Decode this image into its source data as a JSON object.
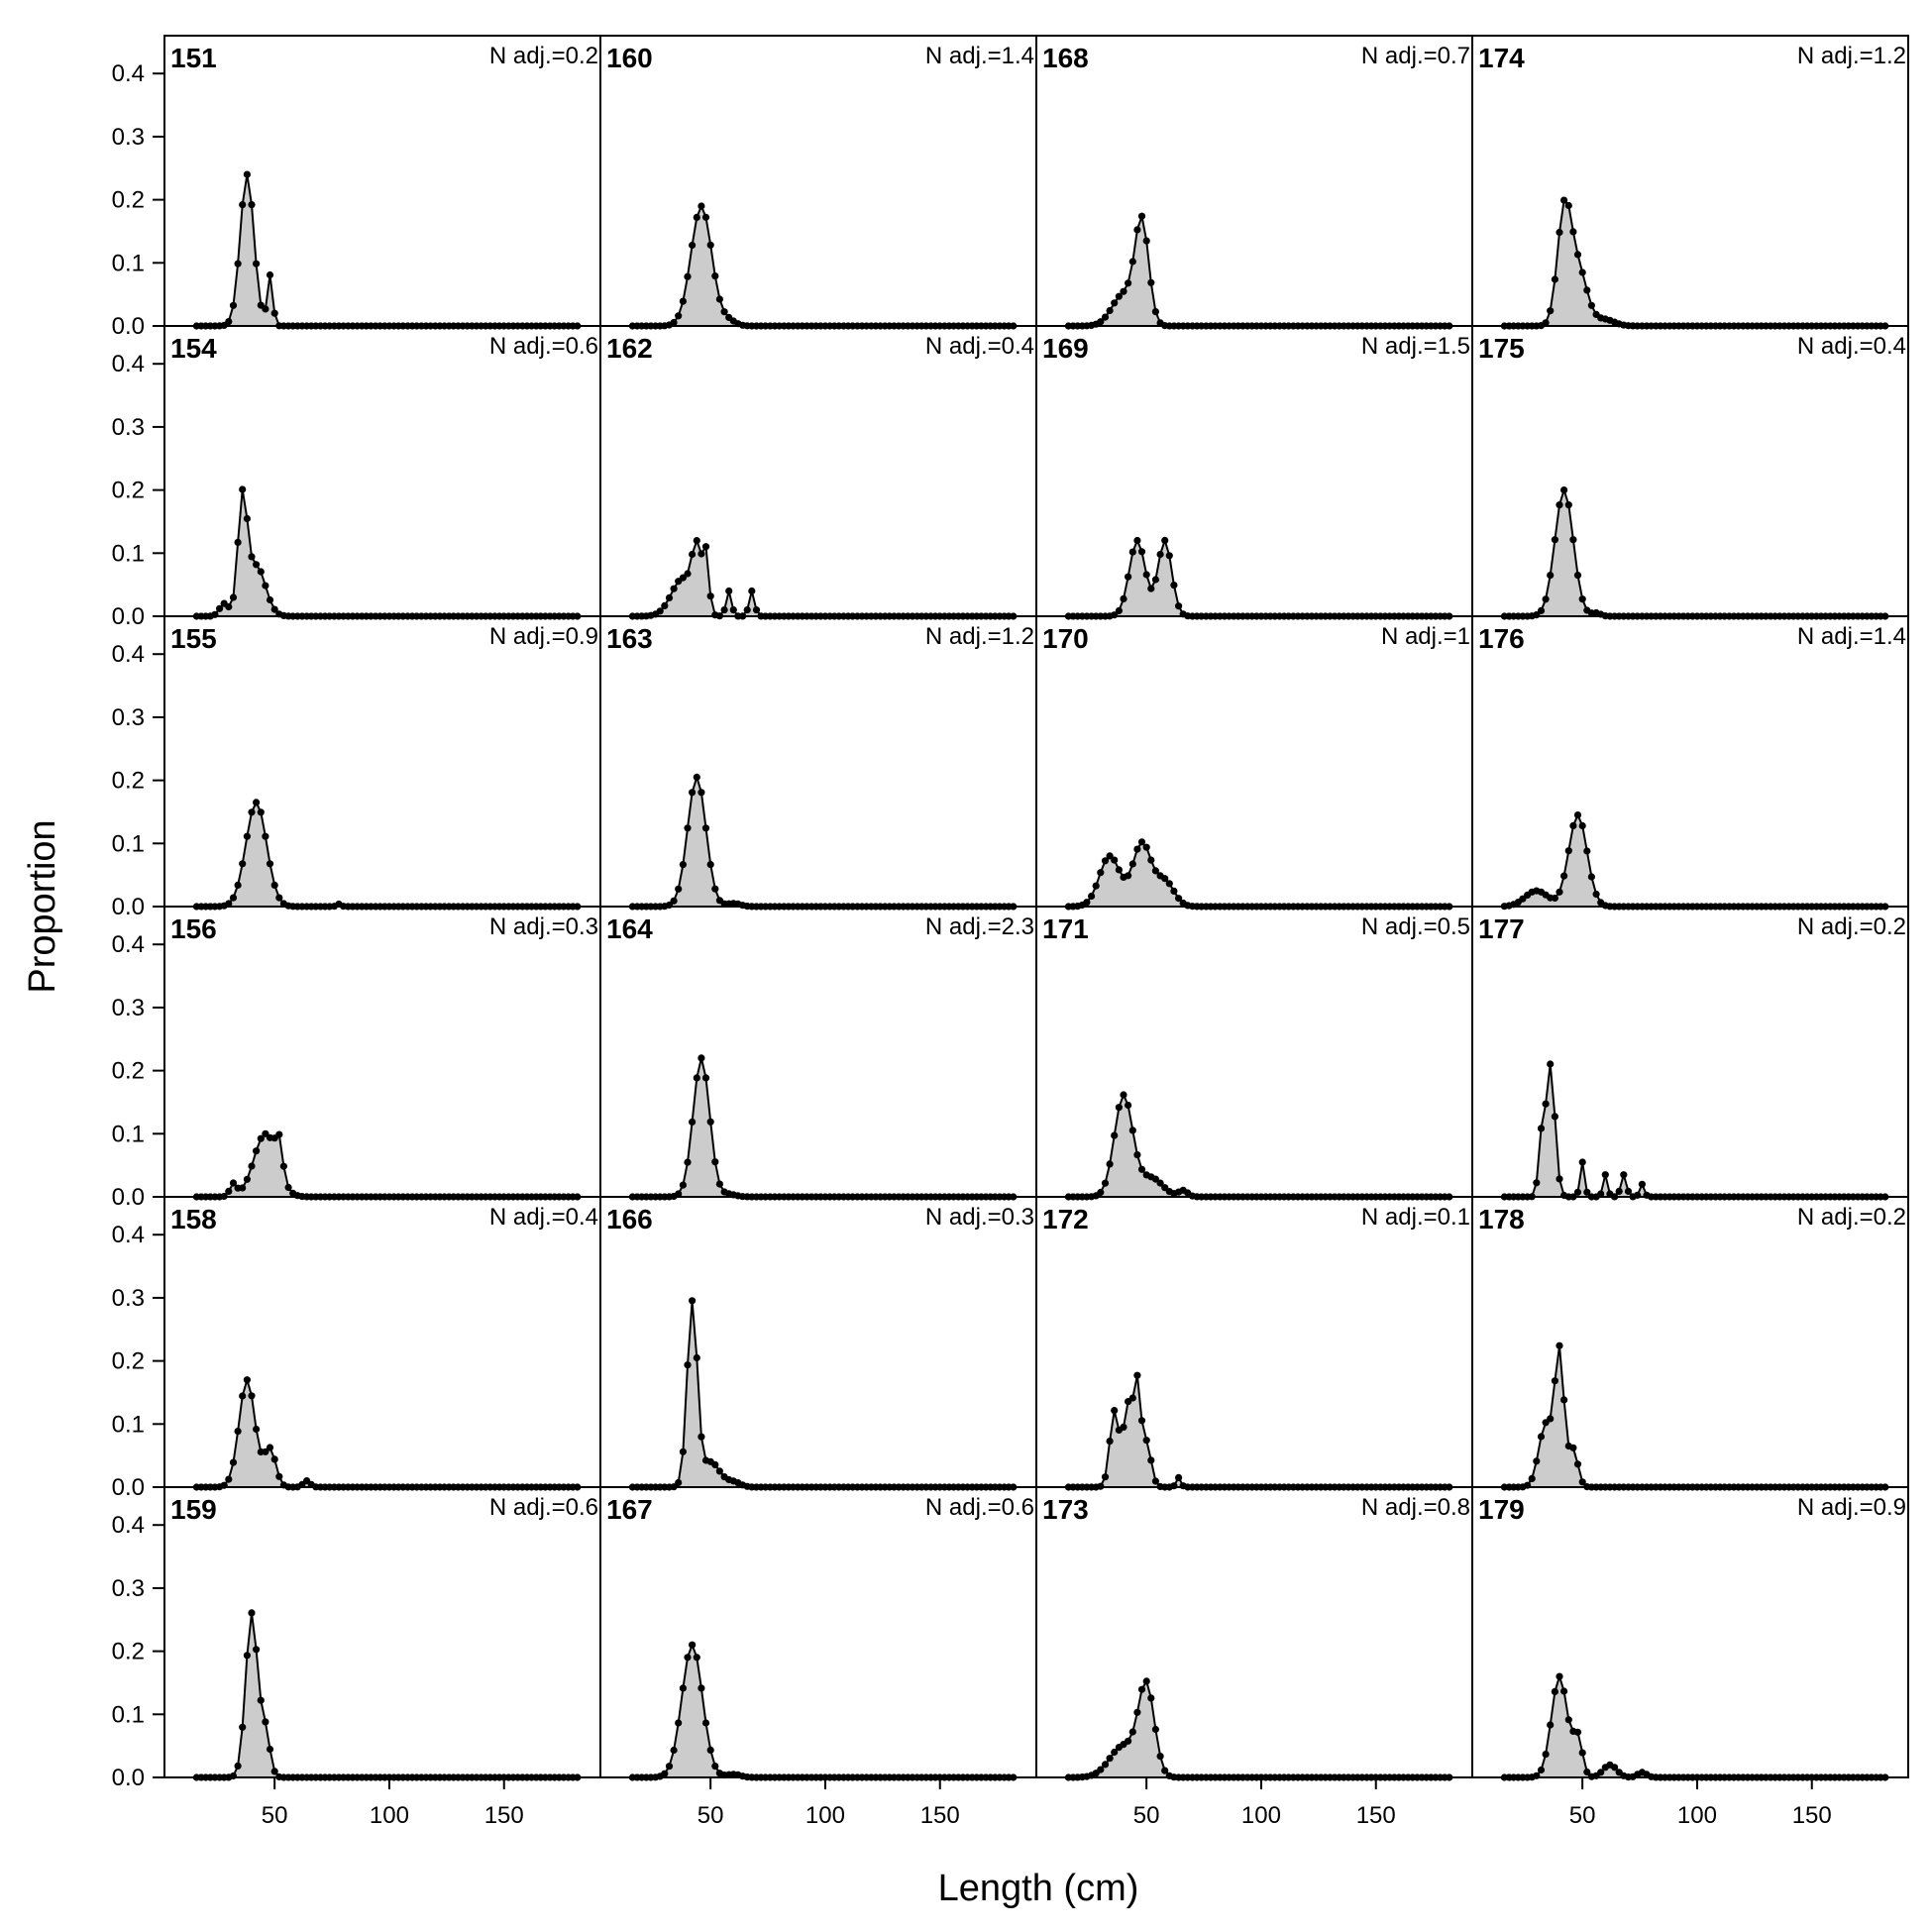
{
  "chart_data": {
    "type": "area",
    "xlabel": "Length (cm)",
    "ylabel": "Proportion",
    "x_range": [
      2,
      192
    ],
    "y_range": [
      0,
      0.46
    ],
    "x_ticks": [
      50,
      100,
      150
    ],
    "y_ticks": [
      "0.0",
      "0.1",
      "0.2",
      "0.3",
      "0.4"
    ],
    "bin_start": 16,
    "bin_end": 182,
    "bin_width": 2,
    "rows": 6,
    "cols": 4,
    "fill_color": "#cccccc",
    "line_color": "#000000",
    "panels": [
      {
        "id": "151",
        "nadj": "N adj.=0.2",
        "peaks": [
          [
            38,
            0.24,
            3
          ],
          [
            48,
            0.08,
            1.2
          ]
        ]
      },
      {
        "id": "154",
        "nadj": "N adj.=0.6",
        "peaks": [
          [
            36,
            0.175,
            2
          ],
          [
            42,
            0.08,
            4
          ],
          [
            28,
            0.02,
            2
          ]
        ]
      },
      {
        "id": "155",
        "nadj": "N adj.=0.9",
        "peaks": [
          [
            42,
            0.165,
            4.5
          ],
          [
            78,
            0.004,
            1
          ]
        ]
      },
      {
        "id": "156",
        "nadj": "N adj.=0.3",
        "peaks": [
          [
            46,
            0.1,
            5
          ],
          [
            52,
            0.05,
            1.5
          ],
          [
            32,
            0.02,
            1.5
          ]
        ]
      },
      {
        "id": "158",
        "nadj": "N adj.=0.4",
        "peaks": [
          [
            38,
            0.17,
            3.5
          ],
          [
            48,
            0.06,
            2.5
          ],
          [
            64,
            0.01,
            1.5
          ]
        ]
      },
      {
        "id": "159",
        "nadj": "N adj.=0.6",
        "peaks": [
          [
            40,
            0.26,
            2.6
          ],
          [
            46,
            0.07,
            2
          ]
        ]
      },
      {
        "id": "160",
        "nadj": "N adj.=1.4",
        "peaks": [
          [
            46,
            0.19,
            4.5
          ],
          [
            58,
            0.008,
            3
          ]
        ]
      },
      {
        "id": "162",
        "nadj": "N adj.=0.4",
        "peaks": [
          [
            38,
            0.06,
            5
          ],
          [
            44,
            0.09,
            2
          ],
          [
            48,
            0.09,
            1.3
          ],
          [
            58,
            0.04,
            1.2
          ],
          [
            68,
            0.04,
            1.2
          ]
        ]
      },
      {
        "id": "163",
        "nadj": "N adj.=1.2",
        "peaks": [
          [
            44,
            0.205,
            4
          ],
          [
            60,
            0.005,
            3
          ]
        ]
      },
      {
        "id": "164",
        "nadj": "N adj.=2.3",
        "peaks": [
          [
            46,
            0.22,
            3.6
          ],
          [
            58,
            0.004,
            3
          ]
        ]
      },
      {
        "id": "166",
        "nadj": "N adj.=0.3",
        "peaks": [
          [
            42,
            0.29,
            2.2
          ],
          [
            50,
            0.04,
            4
          ],
          [
            60,
            0.008,
            3
          ]
        ]
      },
      {
        "id": "167",
        "nadj": "N adj.=0.6",
        "peaks": [
          [
            42,
            0.21,
            4.5
          ],
          [
            60,
            0.005,
            3
          ]
        ]
      },
      {
        "id": "168",
        "nadj": "N adj.=0.7",
        "peaks": [
          [
            48,
            0.16,
            3
          ],
          [
            40,
            0.05,
            5
          ]
        ]
      },
      {
        "id": "169",
        "nadj": "N adj.=1.5",
        "peaks": [
          [
            46,
            0.12,
            3.5
          ],
          [
            58,
            0.12,
            3
          ]
        ]
      },
      {
        "id": "170",
        "nadj": "N adj.=1",
        "peaks": [
          [
            34,
            0.08,
            4.5
          ],
          [
            48,
            0.1,
            4
          ],
          [
            58,
            0.04,
            4
          ]
        ]
      },
      {
        "id": "171",
        "nadj": "N adj.=0.5",
        "peaks": [
          [
            40,
            0.16,
            4
          ],
          [
            52,
            0.03,
            5
          ],
          [
            66,
            0.01,
            2
          ]
        ]
      },
      {
        "id": "172",
        "nadj": "N adj.=0.1",
        "peaks": [
          [
            36,
            0.12,
            2
          ],
          [
            42,
            0.13,
            2
          ],
          [
            46,
            0.15,
            1.5
          ],
          [
            50,
            0.07,
            2
          ],
          [
            64,
            0.015,
            1
          ]
        ]
      },
      {
        "id": "173",
        "nadj": "N adj.=0.8",
        "peaks": [
          [
            50,
            0.14,
            3.5
          ],
          [
            40,
            0.05,
            6
          ]
        ]
      },
      {
        "id": "174",
        "nadj": "N adj.=1.2",
        "peaks": [
          [
            42,
            0.17,
            3
          ],
          [
            48,
            0.09,
            4
          ],
          [
            60,
            0.01,
            4
          ]
        ]
      },
      {
        "id": "175",
        "nadj": "N adj.=0.4",
        "peaks": [
          [
            42,
            0.2,
            4
          ],
          [
            56,
            0.005,
            2
          ]
        ]
      },
      {
        "id": "176",
        "nadj": "N adj.=1.4",
        "peaks": [
          [
            48,
            0.145,
            4
          ],
          [
            30,
            0.025,
            5
          ]
        ]
      },
      {
        "id": "177",
        "nadj": "N adj.=0.2",
        "peaks": [
          [
            36,
            0.21,
            2
          ],
          [
            32,
            0.08,
            1.2
          ],
          [
            50,
            0.055,
            1
          ],
          [
            60,
            0.035,
            1
          ],
          [
            68,
            0.035,
            1.2
          ],
          [
            76,
            0.02,
            1
          ]
        ]
      },
      {
        "id": "178",
        "nadj": "N adj.=0.2",
        "peaks": [
          [
            40,
            0.21,
            2
          ],
          [
            34,
            0.1,
            3
          ],
          [
            46,
            0.06,
            2
          ]
        ]
      },
      {
        "id": "179",
        "nadj": "N adj.=0.9",
        "peaks": [
          [
            40,
            0.16,
            3.5
          ],
          [
            48,
            0.06,
            2
          ],
          [
            62,
            0.02,
            3
          ],
          [
            76,
            0.008,
            2
          ]
        ]
      }
    ]
  }
}
